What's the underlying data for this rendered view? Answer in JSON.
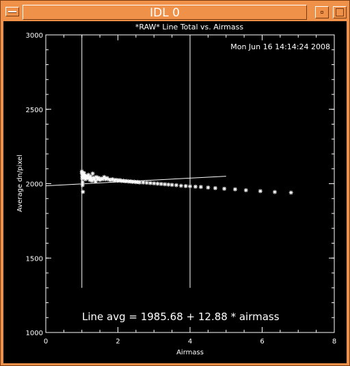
{
  "window": {
    "title": "IDL 0",
    "titlebar_color": "#f0914a",
    "system_menu_icon": "window-menu-icon",
    "minimize_icon": "minimize-icon",
    "maximize_icon": "maximize-icon"
  },
  "chart_data": {
    "type": "scatter",
    "title": "*RAW* Line Total vs. Airmass",
    "timestamp": "Mon Jun 16 14:14:24 2008",
    "xlabel": "Airmass",
    "ylabel": "Average dn/pixel",
    "xlim": [
      0,
      8
    ],
    "ylim": [
      1000,
      3000
    ],
    "xticks": [
      "0",
      "2",
      "4",
      "6",
      "8"
    ],
    "yticks": [
      "1000",
      "1500",
      "2000",
      "2500",
      "3000"
    ],
    "vertical_lines": [
      {
        "x": 1.0,
        "y_range": [
          1300,
          3000
        ]
      },
      {
        "x": 4.0,
        "y_range": [
          1300,
          3000
        ]
      }
    ],
    "fit_line": {
      "intercept": 1985.68,
      "slope": 12.88,
      "x_range": [
        0,
        5.0
      ]
    },
    "annotation": "Line avg = 1985.68 + 12.88 * airmass",
    "points": [
      [
        1.0,
        2082
      ],
      [
        1.0,
        2070
      ],
      [
        1.01,
        2050
      ],
      [
        1.01,
        2035
      ],
      [
        1.02,
        2010
      ],
      [
        1.02,
        1990
      ],
      [
        1.03,
        1945
      ],
      [
        1.04,
        2060
      ],
      [
        1.05,
        2045
      ],
      [
        1.06,
        2072
      ],
      [
        1.08,
        2055
      ],
      [
        1.09,
        2040
      ],
      [
        1.1,
        2030
      ],
      [
        1.12,
        2050
      ],
      [
        1.14,
        2045
      ],
      [
        1.16,
        2038
      ],
      [
        1.18,
        2060
      ],
      [
        1.2,
        2040
      ],
      [
        1.22,
        2025
      ],
      [
        1.24,
        2048
      ],
      [
        1.26,
        2035
      ],
      [
        1.28,
        2020
      ],
      [
        1.3,
        2068
      ],
      [
        1.32,
        2040
      ],
      [
        1.35,
        2030
      ],
      [
        1.38,
        2015
      ],
      [
        1.4,
        2045
      ],
      [
        1.43,
        2030
      ],
      [
        1.46,
        2040
      ],
      [
        1.5,
        2025
      ],
      [
        1.54,
        2035
      ],
      [
        1.58,
        2030
      ],
      [
        1.62,
        2045
      ],
      [
        1.66,
        2030
      ],
      [
        1.7,
        2038
      ],
      [
        1.75,
        2028
      ],
      [
        1.8,
        2025
      ],
      [
        1.85,
        2030
      ],
      [
        1.9,
        2022
      ],
      [
        1.95,
        2026
      ],
      [
        2.0,
        2020
      ],
      [
        2.05,
        2024
      ],
      [
        2.1,
        2018
      ],
      [
        2.15,
        2020
      ],
      [
        2.2,
        2016
      ],
      [
        2.25,
        2018
      ],
      [
        2.3,
        2014
      ],
      [
        2.35,
        2016
      ],
      [
        2.4,
        2012
      ],
      [
        2.45,
        2014
      ],
      [
        2.5,
        2010
      ],
      [
        2.55,
        2012
      ],
      [
        2.6,
        2008
      ],
      [
        2.7,
        2008
      ],
      [
        2.8,
        2006
      ],
      [
        2.9,
        2004
      ],
      [
        3.0,
        2002
      ],
      [
        3.1,
        2000
      ],
      [
        3.2,
        1998
      ],
      [
        3.3,
        1996
      ],
      [
        3.4,
        1994
      ],
      [
        3.5,
        1992
      ],
      [
        3.62,
        1990
      ],
      [
        3.75,
        1986
      ],
      [
        3.88,
        1984
      ],
      [
        4.0,
        1982
      ],
      [
        4.15,
        1980
      ],
      [
        4.3,
        1978
      ],
      [
        4.5,
        1974
      ],
      [
        4.7,
        1970
      ],
      [
        4.95,
        1966
      ],
      [
        5.25,
        1962
      ],
      [
        5.55,
        1956
      ],
      [
        5.95,
        1950
      ],
      [
        6.35,
        1944
      ],
      [
        6.8,
        1940
      ]
    ],
    "grid": false,
    "background": "#000000",
    "foreground": "#ffffff"
  }
}
